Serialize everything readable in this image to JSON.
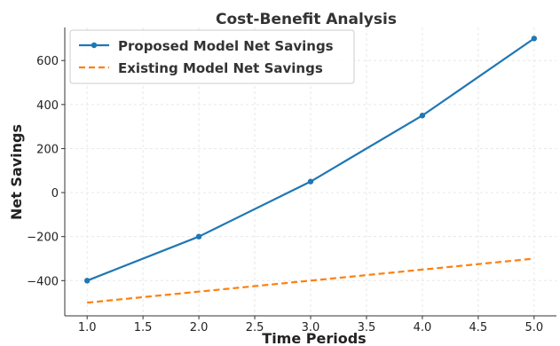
{
  "chart_data": {
    "type": "line",
    "title": "Cost-Benefit Analysis",
    "xlabel": "Time Periods",
    "ylabel": "Net Savings",
    "xlim": [
      0.8,
      5.2
    ],
    "ylim": [
      -560,
      750
    ],
    "x_ticks": [
      1.0,
      1.5,
      2.0,
      2.5,
      3.0,
      3.5,
      4.0,
      4.5,
      5.0
    ],
    "x_tick_labels": [
      "1.0",
      "1.5",
      "2.0",
      "2.5",
      "3.0",
      "3.5",
      "4.0",
      "4.5",
      "5.0"
    ],
    "y_ticks": [
      -400,
      -200,
      0,
      200,
      400,
      600
    ],
    "y_tick_labels": [
      "−400",
      "−200",
      "0",
      "200",
      "400",
      "600"
    ],
    "grid": true,
    "legend_position": "top-left",
    "series": [
      {
        "name": "Proposed Model Net Savings",
        "x": [
          1,
          2,
          3,
          4,
          5
        ],
        "y": [
          -400,
          -200,
          50,
          350,
          700
        ],
        "color": "#1f77b4",
        "line_style": "solid",
        "marker": "circle"
      },
      {
        "name": "Existing Model Net Savings",
        "x": [
          1,
          2,
          3,
          4,
          5
        ],
        "y": [
          -500,
          -450,
          -400,
          -350,
          -300
        ],
        "color": "#ff7f0e",
        "line_style": "dashed",
        "marker": "none"
      }
    ]
  }
}
